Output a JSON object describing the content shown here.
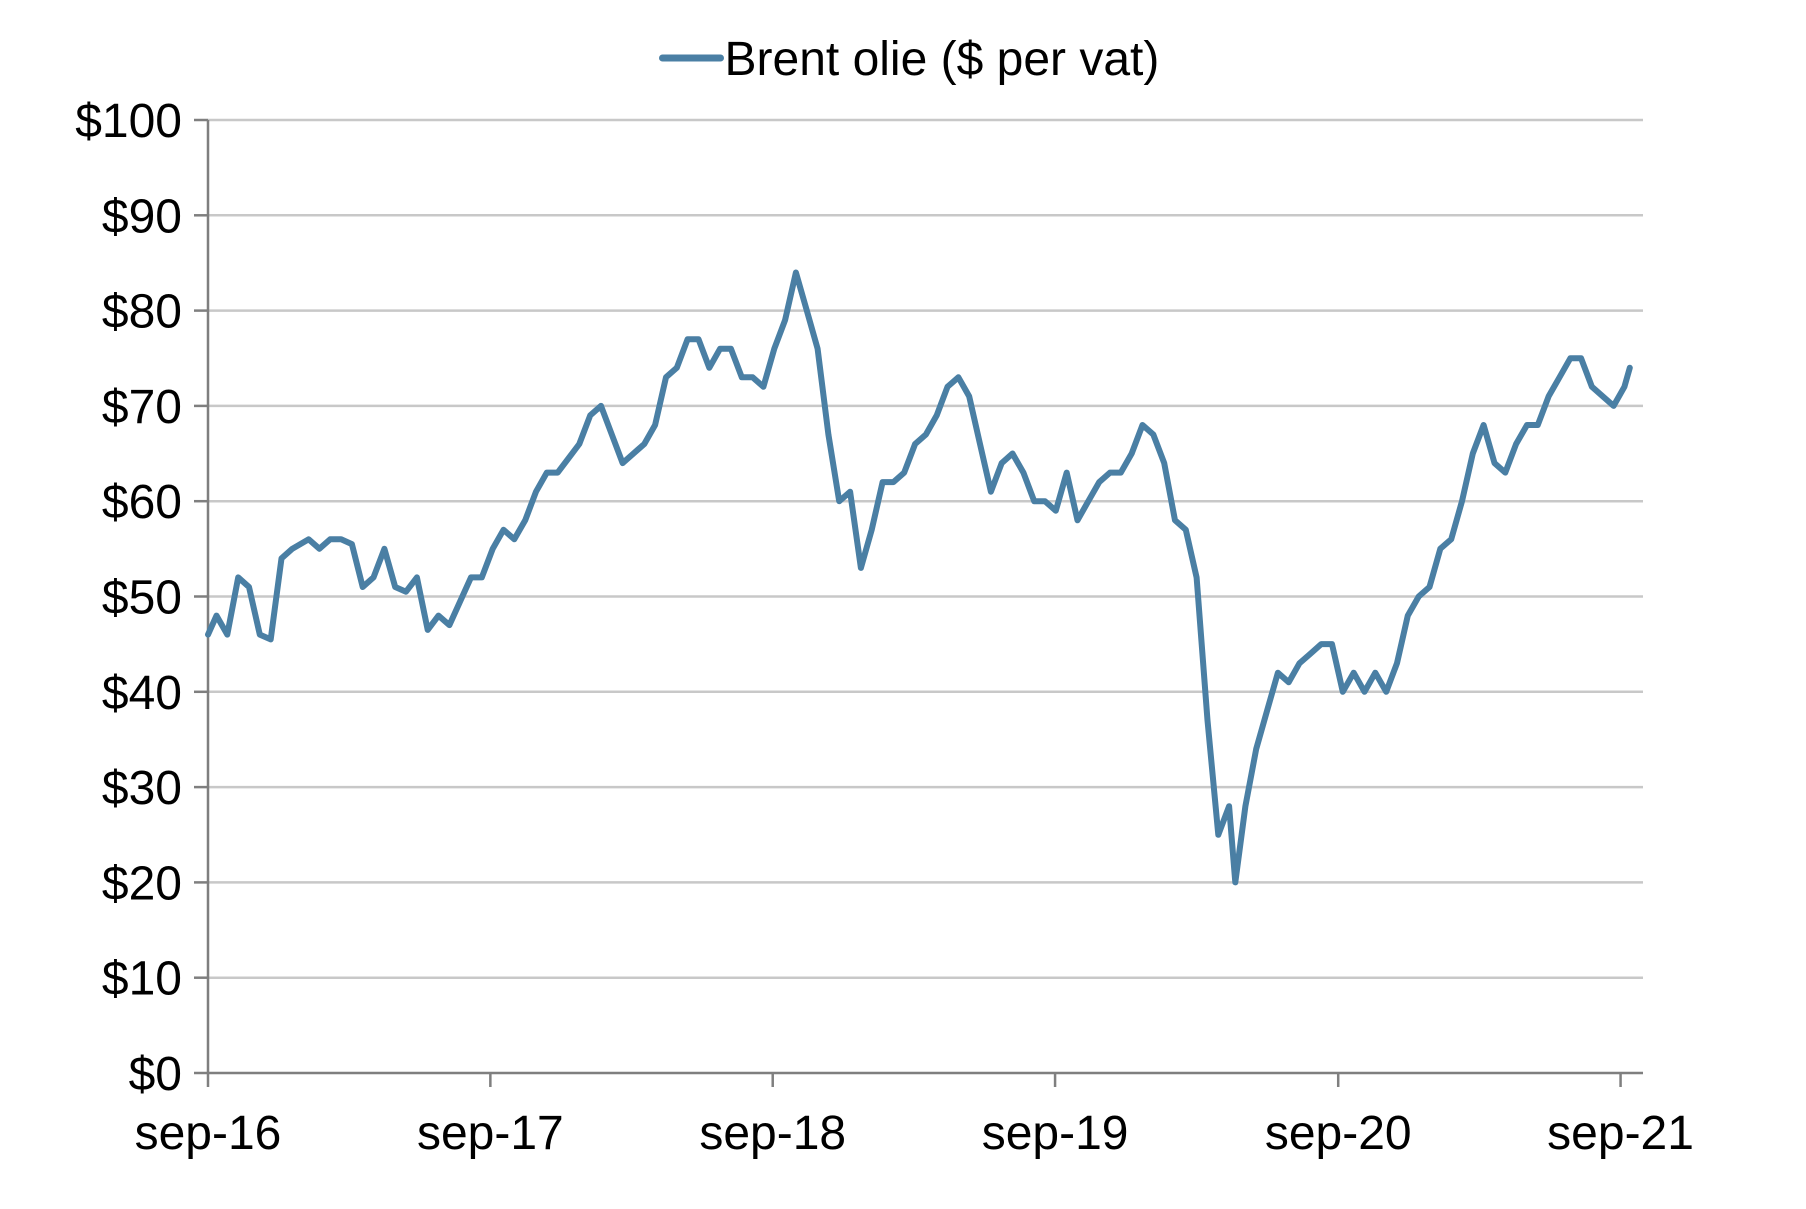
{
  "chart_data": {
    "type": "line",
    "title": "",
    "xlabel": "",
    "ylabel": "",
    "ylim": [
      0,
      100
    ],
    "xlim": [
      "2016-09-01",
      "2021-09-30"
    ],
    "y_ticks": [
      0,
      10,
      20,
      30,
      40,
      50,
      60,
      70,
      80,
      90,
      100
    ],
    "y_tick_labels": [
      "$0",
      "$10",
      "$20",
      "$30",
      "$40",
      "$50",
      "$60",
      "$70",
      "$80",
      "$90",
      "$100"
    ],
    "x_ticks": [
      "2016-09-01",
      "2017-09-01",
      "2018-09-01",
      "2019-09-01",
      "2020-09-01",
      "2021-09-01"
    ],
    "x_tick_labels": [
      "sep-16",
      "sep-17",
      "sep-18",
      "sep-19",
      "sep-20",
      "sep-21"
    ],
    "grid": "horizontal",
    "legend_position": "top-center",
    "series": [
      {
        "name": "Brent olie ($ per vat)",
        "color": "#4a7fa4",
        "x": [
          "2016-09-01",
          "2016-09-12",
          "2016-09-26",
          "2016-10-10",
          "2016-10-24",
          "2016-11-07",
          "2016-11-21",
          "2016-12-05",
          "2016-12-19",
          "2017-01-09",
          "2017-01-23",
          "2017-02-06",
          "2017-02-20",
          "2017-03-06",
          "2017-03-20",
          "2017-04-03",
          "2017-04-17",
          "2017-05-01",
          "2017-05-15",
          "2017-05-29",
          "2017-06-12",
          "2017-06-26",
          "2017-07-10",
          "2017-07-24",
          "2017-08-07",
          "2017-08-21",
          "2017-09-04",
          "2017-09-18",
          "2017-10-02",
          "2017-10-16",
          "2017-10-30",
          "2017-11-13",
          "2017-11-27",
          "2017-12-11",
          "2017-12-25",
          "2018-01-08",
          "2018-01-22",
          "2018-02-05",
          "2018-02-19",
          "2018-03-05",
          "2018-03-19",
          "2018-04-02",
          "2018-04-16",
          "2018-04-30",
          "2018-05-14",
          "2018-05-28",
          "2018-06-11",
          "2018-06-25",
          "2018-07-09",
          "2018-07-23",
          "2018-08-06",
          "2018-08-20",
          "2018-09-03",
          "2018-09-17",
          "2018-10-01",
          "2018-10-15",
          "2018-10-29",
          "2018-11-12",
          "2018-11-26",
          "2018-12-10",
          "2018-12-24",
          "2019-01-07",
          "2019-01-21",
          "2019-02-04",
          "2019-02-18",
          "2019-03-04",
          "2019-03-18",
          "2019-04-01",
          "2019-04-15",
          "2019-04-29",
          "2019-05-13",
          "2019-05-27",
          "2019-06-10",
          "2019-06-24",
          "2019-07-08",
          "2019-07-22",
          "2019-08-05",
          "2019-08-19",
          "2019-09-02",
          "2019-09-16",
          "2019-09-30",
          "2019-10-14",
          "2019-10-28",
          "2019-11-11",
          "2019-11-25",
          "2019-12-09",
          "2019-12-23",
          "2020-01-06",
          "2020-01-20",
          "2020-02-03",
          "2020-02-17",
          "2020-03-02",
          "2020-03-16",
          "2020-03-30",
          "2020-04-13",
          "2020-04-21",
          "2020-05-04",
          "2020-05-18",
          "2020-06-01",
          "2020-06-15",
          "2020-06-29",
          "2020-07-13",
          "2020-07-27",
          "2020-08-10",
          "2020-08-24",
          "2020-09-07",
          "2020-09-21",
          "2020-10-05",
          "2020-10-19",
          "2020-11-02",
          "2020-11-16",
          "2020-11-30",
          "2020-12-14",
          "2020-12-28",
          "2021-01-11",
          "2021-01-25",
          "2021-02-08",
          "2021-02-22",
          "2021-03-08",
          "2021-03-22",
          "2021-04-05",
          "2021-04-19",
          "2021-05-03",
          "2021-05-17",
          "2021-05-31",
          "2021-06-14",
          "2021-06-28",
          "2021-07-12",
          "2021-07-26",
          "2021-08-09",
          "2021-08-23",
          "2021-09-06",
          "2021-09-13"
        ],
        "values": [
          46,
          48,
          46,
          52,
          51,
          46,
          45.5,
          54,
          55,
          56,
          55,
          56,
          56,
          55.5,
          51,
          52,
          55,
          51,
          50.5,
          52,
          46.5,
          48,
          47,
          49.5,
          52,
          52,
          55,
          57,
          56,
          58,
          61,
          63,
          63,
          64.5,
          66,
          69,
          70,
          67,
          64,
          65,
          66,
          68,
          73,
          74,
          77,
          77,
          74,
          76,
          76,
          73,
          73,
          72,
          76,
          79,
          84,
          80,
          76,
          67,
          60,
          61,
          53,
          57,
          62,
          62,
          63,
          66,
          67,
          69,
          72,
          73,
          71,
          66,
          61,
          64,
          65,
          63,
          60,
          60,
          59,
          63,
          58,
          60,
          62,
          63,
          63,
          65,
          68,
          67,
          64,
          58,
          57,
          52,
          37,
          25,
          28,
          20,
          28,
          34,
          38,
          42,
          41,
          43,
          44,
          45,
          45,
          40,
          42,
          40,
          42,
          40,
          43,
          48,
          50,
          51,
          55,
          56,
          60,
          65,
          68,
          64,
          63,
          66,
          68,
          68,
          71,
          73,
          75,
          75,
          72,
          71,
          70,
          72,
          74
        ]
      }
    ]
  }
}
